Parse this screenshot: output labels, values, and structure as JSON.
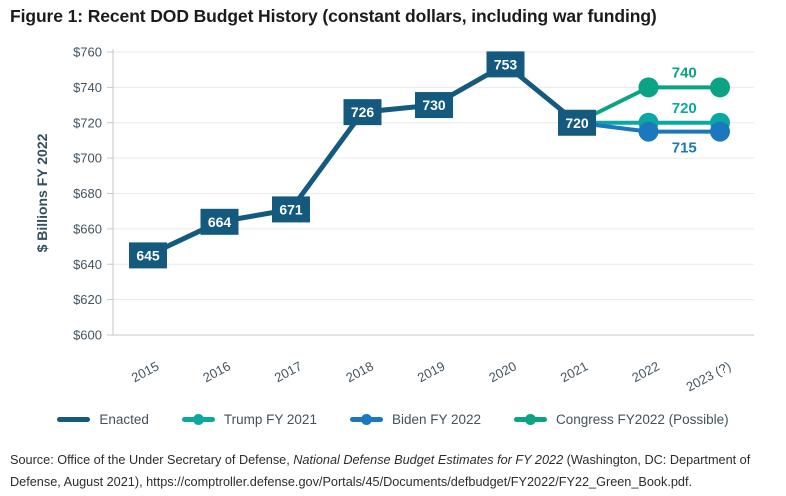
{
  "page": {
    "title": "Figure 1: Recent DOD Budget History (constant dollars, including war funding)",
    "source": {
      "prefix": "Source: Office of the Under Secretary of Defense, ",
      "italic": "National Defense Budget Estimates for FY 2022",
      "suffix": " (Washington, DC: Department of Defense, August 2021), https://comptroller.defense.gov/Portals/45/Documents/defbudget/FY2022/FY22_Green_Book.pdf."
    }
  },
  "chart_data": {
    "type": "line",
    "title": "Figure 1: Recent DOD Budget History (constant dollars, including war funding)",
    "xlabel": "",
    "ylabel": "$ Billions FY 2022",
    "ylim": [
      600,
      760
    ],
    "ytick_step": 20,
    "ytick_prefix": "$",
    "grid": true,
    "legend_position": "bottom",
    "categories": [
      "2015",
      "2016",
      "2017",
      "2018",
      "2019",
      "2020",
      "2021",
      "2022",
      "2023 (?)"
    ],
    "series": [
      {
        "name": "Enacted",
        "color": "#14597E",
        "marker": "none",
        "label_style": "box",
        "x": [
          "2015",
          "2016",
          "2017",
          "2018",
          "2019",
          "2020",
          "2021"
        ],
        "values": [
          645,
          664,
          671,
          726,
          730,
          753,
          720
        ]
      },
      {
        "name": "Trump FY 2021",
        "color": "#0BA8A3",
        "marker": "circle",
        "skip_first_marker": true,
        "label_style": "text",
        "annotation": {
          "text": "720",
          "position": "above"
        },
        "x": [
          "2021",
          "2022",
          "2023 (?)"
        ],
        "values": [
          720,
          720,
          720
        ]
      },
      {
        "name": "Biden FY 2022",
        "color": "#1B77BE",
        "marker": "circle",
        "skip_first_marker": true,
        "label_style": "text",
        "annotation": {
          "text": "715",
          "position": "below"
        },
        "x": [
          "2021",
          "2022",
          "2023 (?)"
        ],
        "values": [
          720,
          715,
          715
        ]
      },
      {
        "name": "Congress FY2022 (Possible)",
        "color": "#0AA384",
        "marker": "circle",
        "skip_first_marker": true,
        "label_style": "text",
        "annotation": {
          "text": "740",
          "position": "above"
        },
        "x": [
          "2021",
          "2022",
          "2023 (?)"
        ],
        "values": [
          720,
          740,
          740
        ]
      }
    ],
    "axis_text_color": "#44545f",
    "axis_title_color": "#34505e",
    "gridline_color": "#e9eaec",
    "axisline_color": "#c3c8cc"
  }
}
